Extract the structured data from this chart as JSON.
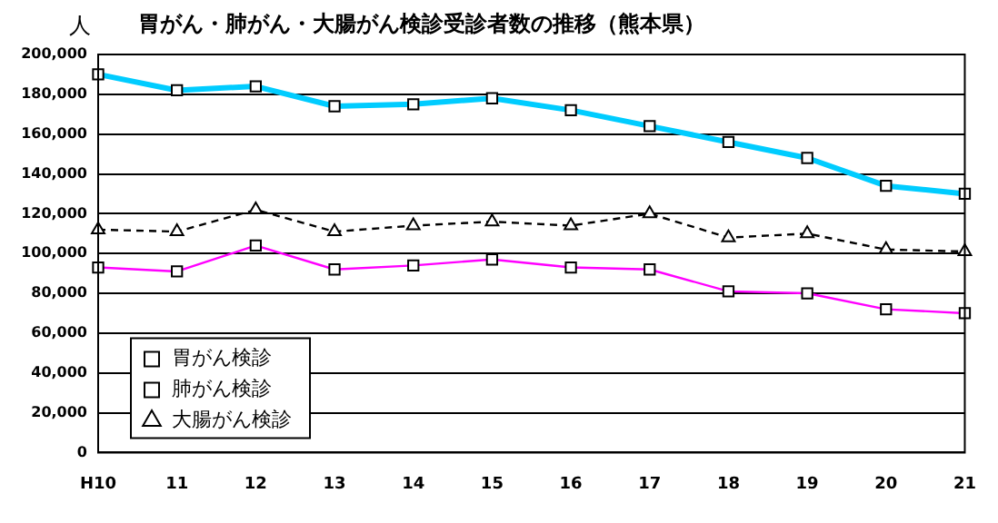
{
  "chart_data": {
    "type": "line",
    "title": "胃がん・肺がん・大腸がん検診受診者数の推移（熊本県）",
    "ylabel": "人",
    "categories": [
      "H10",
      "11",
      "12",
      "13",
      "14",
      "15",
      "16",
      "17",
      "18",
      "19",
      "20",
      "21"
    ],
    "series": [
      {
        "name": "胃がん検診",
        "color": "#ff00ff",
        "marker": "square",
        "line_style": "solid",
        "values": [
          93000,
          91000,
          104000,
          92000,
          94000,
          97000,
          93000,
          92000,
          81000,
          80000,
          72000,
          70000
        ]
      },
      {
        "name": "肺がん検診",
        "color": "#00ccff",
        "marker": "square",
        "line_style": "solid",
        "values": [
          190000,
          182000,
          184000,
          174000,
          175000,
          178000,
          172000,
          164000,
          156000,
          148000,
          134000,
          130000
        ]
      },
      {
        "name": "大腸がん検診",
        "color": "#000000",
        "marker": "triangle",
        "line_style": "dashed",
        "values": [
          112000,
          111000,
          122000,
          111000,
          114000,
          116000,
          114000,
          120000,
          108000,
          110000,
          102000,
          101000
        ]
      }
    ],
    "ylim": [
      0,
      200000
    ],
    "yticks": [
      0,
      {
        "value": 20000,
        "label": "20,000"
      },
      {
        "value": 40000,
        "label": "40,000"
      },
      {
        "value": 60000,
        "label": "60,000"
      },
      {
        "value": 80000,
        "label": "80,000"
      },
      {
        "value": 100000,
        "label": "100,000"
      },
      {
        "value": 120000,
        "label": "120,000"
      },
      {
        "value": 140000,
        "label": "140,000"
      },
      {
        "value": 160000,
        "label": "160,000"
      },
      {
        "value": 180000,
        "label": "180,000"
      },
      {
        "value": 200000,
        "label": "200,000"
      }
    ],
    "grid": "y",
    "legend": "bottom left"
  }
}
